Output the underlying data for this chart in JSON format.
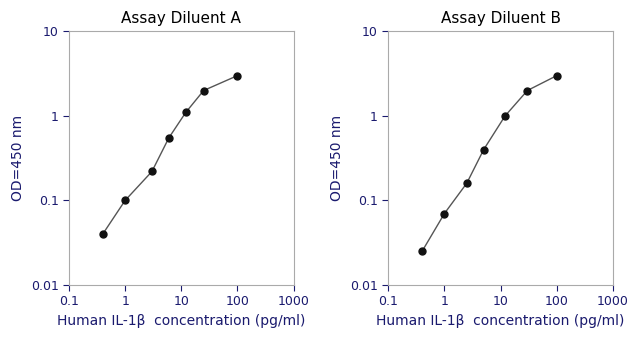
{
  "panel_A": {
    "title": "Assay Diluent A",
    "x": [
      0.4,
      1.0,
      3.0,
      6.0,
      12.0,
      25.0,
      100.0
    ],
    "y": [
      0.04,
      0.1,
      0.22,
      0.55,
      1.1,
      2.0,
      3.0
    ]
  },
  "panel_B": {
    "title": "Assay Diluent B",
    "x": [
      0.4,
      1.0,
      2.5,
      5.0,
      12.0,
      30.0,
      100.0
    ],
    "y": [
      0.025,
      0.07,
      0.16,
      0.4,
      1.0,
      2.0,
      3.0
    ]
  },
  "xlabel": "Human IL-1β  concentration (pg/ml)",
  "ylabel": "OD=450 nm",
  "xlim": [
    0.1,
    1000
  ],
  "ylim": [
    0.01,
    10
  ],
  "line_color": "#555555",
  "marker_color": "#111111",
  "marker_size": 5,
  "line_width": 1.0,
  "title_fontsize": 11,
  "label_fontsize": 10,
  "tick_fontsize": 9,
  "label_color": "#1a1a6e",
  "tick_color": "#1a1a6e",
  "background_color": "#ffffff",
  "spine_color": "#aaaaaa"
}
